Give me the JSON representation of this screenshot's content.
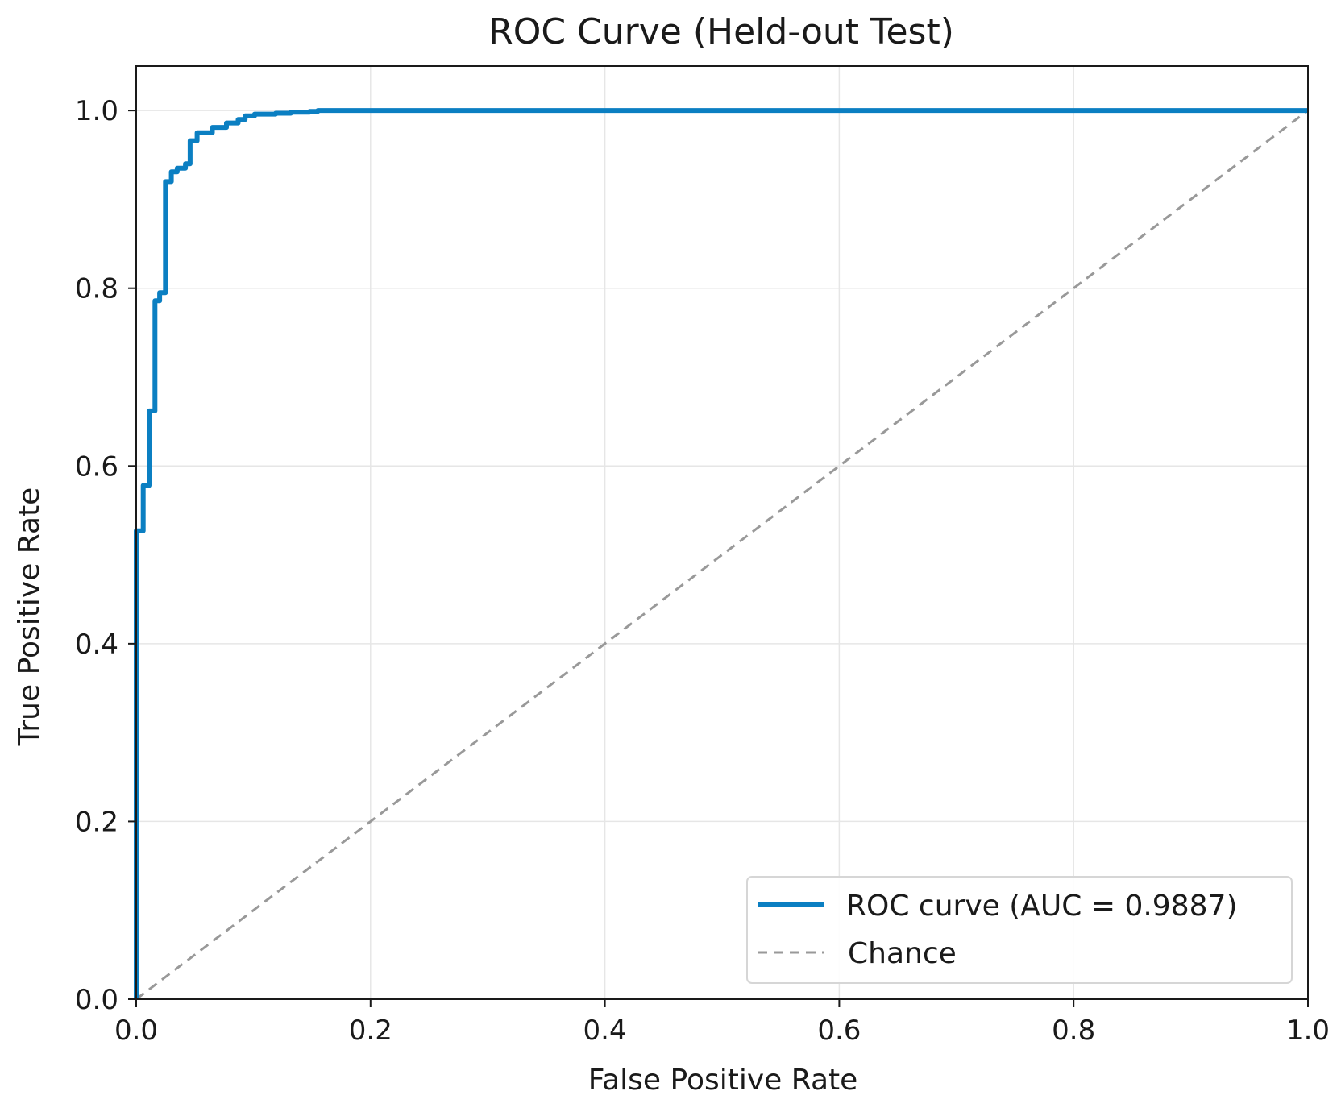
{
  "chart_data": {
    "type": "line",
    "title": "ROC Curve (Held-out Test)",
    "xlabel": "False Positive Rate",
    "ylabel": "True Positive Rate",
    "xlim": [
      0.0,
      1.0
    ],
    "ylim": [
      0.0,
      1.05
    ],
    "xticks": [
      "0.0",
      "0.2",
      "0.4",
      "0.6",
      "0.8",
      "1.0"
    ],
    "yticks": [
      "0.0",
      "0.2",
      "0.4",
      "0.6",
      "0.8",
      "1.0"
    ],
    "grid": true,
    "legend_position": "lower-right",
    "series": [
      {
        "name": "ROC curve (AUC = 0.9887)",
        "color": "#0b7fc2",
        "style": "solid",
        "x": [
          0.0,
          0.0,
          0.006,
          0.006,
          0.011,
          0.011,
          0.016,
          0.016,
          0.02,
          0.02,
          0.025,
          0.025,
          0.03,
          0.03,
          0.035,
          0.035,
          0.042,
          0.042,
          0.046,
          0.046,
          0.052,
          0.052,
          0.065,
          0.065,
          0.077,
          0.077,
          0.087,
          0.087,
          0.093,
          0.093,
          0.101,
          0.101,
          0.119,
          0.119,
          0.132,
          0.132,
          0.148,
          0.148,
          0.155,
          0.155,
          1.0
        ],
        "y": [
          0.0,
          0.527,
          0.527,
          0.578,
          0.578,
          0.662,
          0.662,
          0.786,
          0.786,
          0.795,
          0.795,
          0.92,
          0.92,
          0.931,
          0.931,
          0.935,
          0.935,
          0.94,
          0.94,
          0.966,
          0.966,
          0.975,
          0.975,
          0.981,
          0.981,
          0.986,
          0.986,
          0.99,
          0.99,
          0.994,
          0.994,
          0.996,
          0.996,
          0.997,
          0.997,
          0.998,
          0.998,
          0.999,
          0.999,
          1.0,
          1.0
        ]
      },
      {
        "name": "Chance",
        "color": "#999999",
        "style": "dashed",
        "x": [
          0.0,
          1.0
        ],
        "y": [
          0.0,
          1.0
        ]
      }
    ]
  }
}
